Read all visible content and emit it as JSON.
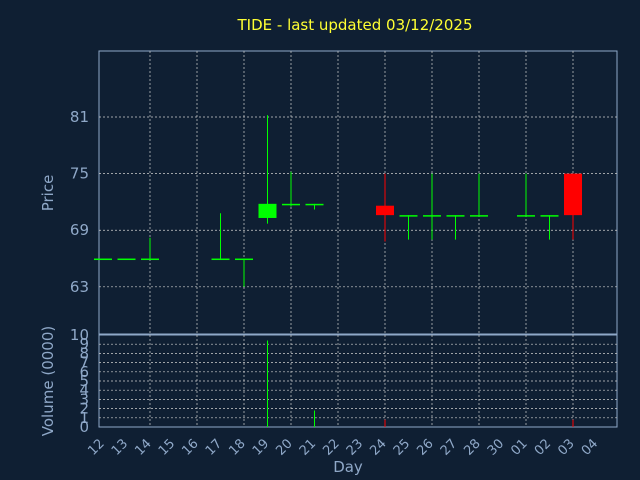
{
  "chart_data": {
    "type": "candlestick",
    "title": "TIDE - last updated 03/12/2025",
    "ylabel": "Price",
    "volume_ylabel": "Volume (0000)",
    "xlabel": "Day",
    "colors": {
      "background": "#0f1f33",
      "title": "#ffff33",
      "axis_text": "#8fa8c8",
      "grid": "#d0d0d0",
      "up": "#00ff00",
      "down": "#ff0000",
      "flat": "#00ff00"
    },
    "price_ylim": [
      58,
      88
    ],
    "price_yticks": [
      "63",
      "69",
      "75",
      "81"
    ],
    "volume_ylim": [
      0,
      10
    ],
    "volume_yticks": [
      "0",
      "1",
      "2",
      "3",
      "4",
      "5",
      "6",
      "7",
      "8",
      "9",
      "10"
    ],
    "grid": true,
    "x_tick_labels": [
      "12",
      "13",
      "14",
      "15",
      "16",
      "17",
      "18",
      "19",
      "20",
      "21",
      "22",
      "23",
      "24",
      "25",
      "26",
      "27",
      "28",
      "30",
      "01",
      "02",
      "03",
      "04"
    ],
    "candles": [
      {
        "x": 0,
        "open": 66,
        "high": 66,
        "low": 66,
        "close": 66,
        "volume": 0
      },
      {
        "x": 1,
        "open": 66,
        "high": 66,
        "low": 66,
        "close": 66,
        "volume": 0
      },
      {
        "x": 2,
        "open": 66,
        "high": 68.2,
        "low": 66,
        "close": 66,
        "volume": 0
      },
      {
        "x": 5,
        "open": 66,
        "high": 70.8,
        "low": 66,
        "close": 66,
        "volume": 0
      },
      {
        "x": 6,
        "open": 66,
        "high": 66,
        "low": 63,
        "close": 66,
        "volume": 0
      },
      {
        "x": 7,
        "open": 70.3,
        "high": 81.2,
        "low": 69.7,
        "close": 71.8,
        "volume": 9.4
      },
      {
        "x": 8,
        "open": 71.8,
        "high": 75.2,
        "low": 71.5,
        "close": 71.8,
        "volume": 0
      },
      {
        "x": 9,
        "open": 71.8,
        "high": 71.8,
        "low": 71.2,
        "close": 71.8,
        "volume": 1.8
      },
      {
        "x": 12,
        "open": 71.6,
        "high": 75,
        "low": 67.8,
        "close": 70.6,
        "volume": 0.8
      },
      {
        "x": 13,
        "open": 70.6,
        "high": 70.6,
        "low": 68,
        "close": 70.6,
        "volume": 0
      },
      {
        "x": 14,
        "open": 70.6,
        "high": 75,
        "low": 68,
        "close": 70.6,
        "volume": 0
      },
      {
        "x": 15,
        "open": 70.6,
        "high": 70.6,
        "low": 68,
        "close": 70.6,
        "volume": 0
      },
      {
        "x": 16,
        "open": 70.6,
        "high": 75,
        "low": 70.6,
        "close": 70.6,
        "volume": 0
      },
      {
        "x": 18,
        "open": 70.6,
        "high": 75,
        "low": 70.6,
        "close": 70.6,
        "volume": 0
      },
      {
        "x": 19,
        "open": 70.6,
        "high": 70.6,
        "low": 68,
        "close": 70.6,
        "volume": 0
      },
      {
        "x": 20,
        "open": 75,
        "high": 75,
        "low": 68,
        "close": 70.6,
        "volume": 0.8
      }
    ]
  }
}
